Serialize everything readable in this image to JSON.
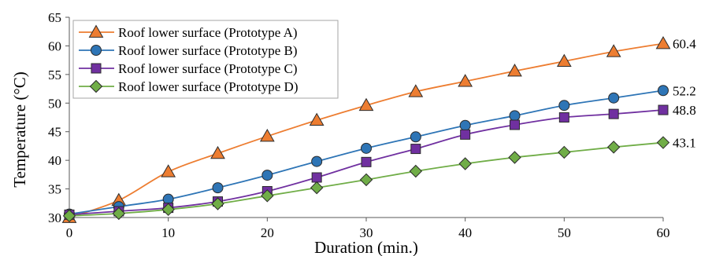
{
  "chart_data": {
    "type": "line",
    "xlabel": "Duration (min.)",
    "ylabel": "Temperature (°C)",
    "xlim": [
      0,
      60
    ],
    "ylim": [
      30,
      65
    ],
    "xticks": [
      0,
      10,
      20,
      30,
      40,
      50,
      60
    ],
    "yticks": [
      30,
      35,
      40,
      45,
      50,
      55,
      60,
      65
    ],
    "grid": "none",
    "legend_position": "top-left",
    "x": [
      0,
      5,
      10,
      15,
      20,
      25,
      30,
      35,
      40,
      45,
      50,
      55,
      60
    ],
    "series": [
      {
        "name": "Roof lower surface (Prototype A)",
        "marker": "triangle",
        "color": "#ED7D31",
        "values": [
          30.0,
          33.0,
          38.0,
          41.2,
          44.2,
          47.0,
          49.6,
          52.0,
          53.8,
          55.6,
          57.3,
          59.0,
          60.4
        ],
        "end_label": "60.4"
      },
      {
        "name": "Roof lower surface (Prototype B)",
        "marker": "circle",
        "color": "#2E75B6",
        "values": [
          30.6,
          31.9,
          33.2,
          35.2,
          37.4,
          39.8,
          42.1,
          44.1,
          46.1,
          47.8,
          49.6,
          50.9,
          52.2
        ],
        "end_label": "52.2"
      },
      {
        "name": "Roof lower surface (Prototype C)",
        "marker": "square",
        "color": "#7030A0",
        "values": [
          30.5,
          31.1,
          31.7,
          32.8,
          34.6,
          37.0,
          39.7,
          42.0,
          44.5,
          46.2,
          47.5,
          48.1,
          48.8
        ],
        "end_label": "48.8"
      },
      {
        "name": "Roof lower surface (Prototype D)",
        "marker": "diamond",
        "color": "#70AD47",
        "values": [
          30.3,
          30.7,
          31.4,
          32.4,
          33.8,
          35.2,
          36.6,
          38.1,
          39.4,
          40.5,
          41.4,
          42.3,
          43.1
        ],
        "end_label": "43.1"
      }
    ]
  }
}
